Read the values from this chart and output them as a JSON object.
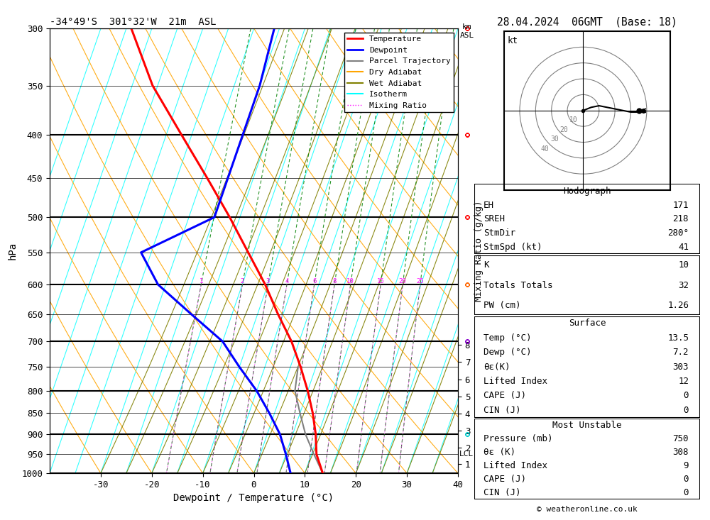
{
  "title_left": "-34°49'S  301°32'W  21m  ASL",
  "title_right": "28.04.2024  06GMT  (Base: 18)",
  "xlabel": "Dewpoint / Temperature (°C)",
  "ylabel_left": "hPa",
  "ylabel_right": "Mixing Ratio (g/kg)",
  "pressure_levels": [
    300,
    350,
    400,
    450,
    500,
    550,
    600,
    650,
    700,
    750,
    800,
    850,
    900,
    950,
    1000
  ],
  "pressure_major": [
    300,
    400,
    500,
    600,
    700,
    800,
    900,
    1000
  ],
  "temp_xlim": [
    -40,
    40
  ],
  "temp_xticks": [
    -30,
    -20,
    -10,
    0,
    10,
    20,
    30,
    40
  ],
  "background_color": "#ffffff",
  "temp_profile": {
    "pressure": [
      1000,
      950,
      900,
      850,
      800,
      750,
      700,
      650,
      600,
      550,
      500,
      450,
      400,
      350,
      300
    ],
    "temperature": [
      13.5,
      11.0,
      9.5,
      7.5,
      5.0,
      2.0,
      -1.5,
      -6.0,
      -10.5,
      -16.0,
      -22.0,
      -29.0,
      -37.0,
      -46.0,
      -54.0
    ]
  },
  "dewp_profile": {
    "pressure": [
      1000,
      950,
      900,
      850,
      800,
      750,
      700,
      650,
      600,
      550,
      500,
      450,
      400,
      350,
      300
    ],
    "dewpoint": [
      7.2,
      5.0,
      2.5,
      -1.0,
      -5.0,
      -10.0,
      -15.0,
      -23.0,
      -31.5,
      -37.0,
      -25.0,
      -25.0,
      -25.0,
      -25.0,
      -26.0
    ]
  },
  "parcel_profile": {
    "pressure": [
      1000,
      950,
      900,
      850,
      800,
      750
    ],
    "temperature": [
      13.5,
      10.5,
      7.5,
      5.0,
      2.5,
      1.5
    ]
  },
  "lcl_pressure": 950,
  "stats": {
    "K": 10,
    "TotTot": 32,
    "PW_cm": 1.26,
    "surf_temp": 13.5,
    "surf_dewp": 7.2,
    "theta_e": 303,
    "lifted_index": 12,
    "CAPE": 0,
    "CIN": 0,
    "mu_pressure": 750,
    "mu_theta_e": 308,
    "mu_lifted_index": 9,
    "mu_CAPE": 0,
    "mu_CIN": 0,
    "EH": 171,
    "SREH": 218,
    "StmDir": 280,
    "StmSpd_kt": 41
  },
  "km_ticks": [
    1,
    2,
    3,
    4,
    5,
    6,
    7,
    8
  ],
  "km_pressures": [
    976,
    933,
    891,
    851,
    813,
    776,
    740,
    706
  ],
  "mixing_ratio_lines": [
    1,
    2,
    3,
    4,
    6,
    8,
    10,
    15,
    20,
    25
  ],
  "wind_barbs": {
    "pressures": [
      300,
      400,
      500,
      600,
      700,
      900
    ],
    "u": [
      -25,
      -20,
      -15,
      -10,
      -8,
      -5
    ],
    "v": [
      5,
      5,
      5,
      5,
      5,
      3
    ],
    "colors": [
      "#ff0000",
      "#ff0000",
      "#ff0000",
      "#ff6600",
      "#8800cc",
      "#00cccc"
    ]
  },
  "hodograph": {
    "u": [
      0,
      5,
      10,
      15,
      20,
      25,
      30,
      35,
      38
    ],
    "v": [
      0,
      2,
      3,
      2,
      1,
      0,
      -1,
      -1,
      0
    ],
    "storm_u": 35,
    "storm_v": 0
  }
}
